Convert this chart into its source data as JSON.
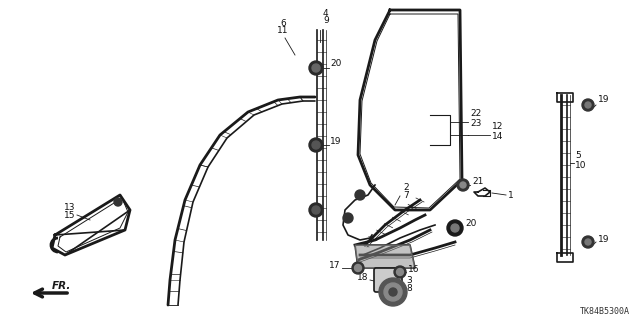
{
  "title": "",
  "diagram_code": "TK84B5300A",
  "bg_color": "#ffffff",
  "line_color": "#1a1a1a",
  "figsize": [
    6.4,
    3.2
  ],
  "dpi": 100
}
